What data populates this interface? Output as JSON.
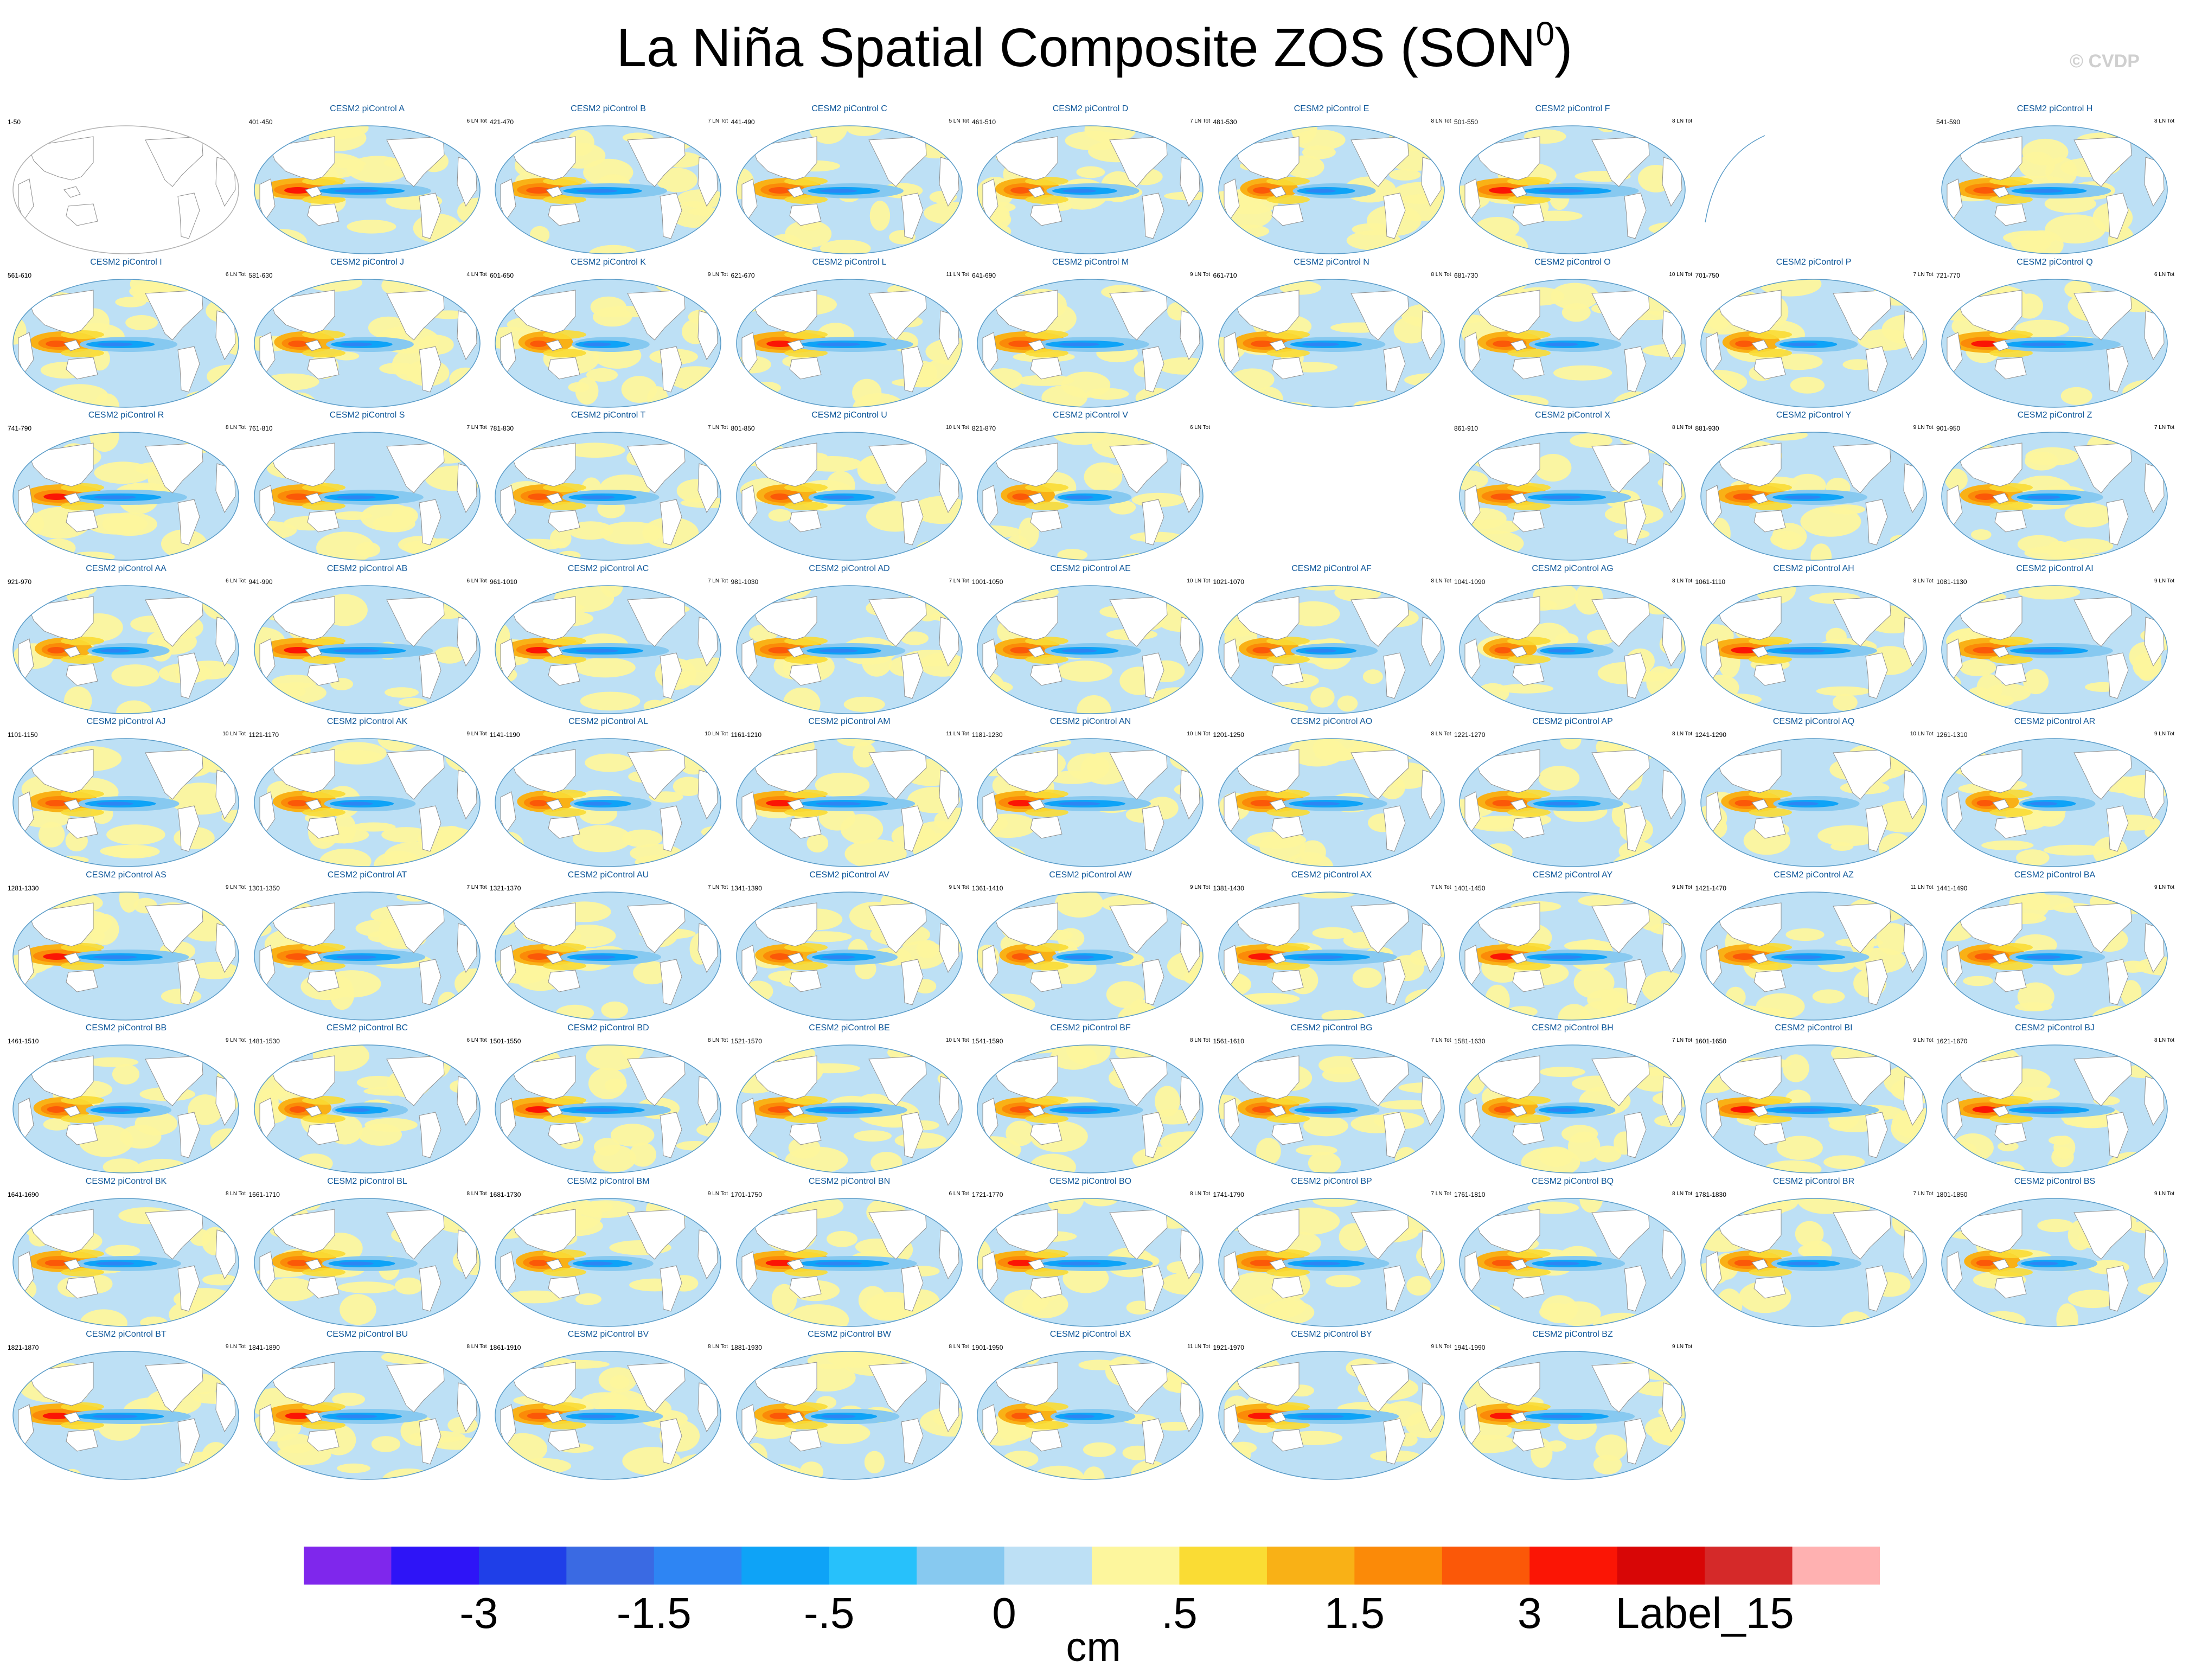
{
  "title": "La Niña Spatial Composite ZOS (SON",
  "title_sup": "0",
  "title_close": ")",
  "copyright": "© CVDP",
  "units": "cm",
  "colors": {
    "land": "#ffffff",
    "coast": "#8f8f8f",
    "frame": "#5b9cc8",
    "panel_title": "#10589a"
  },
  "chart_data": {
    "type": "heatmap",
    "variable": "ZOS",
    "season": "SON",
    "units": "cm",
    "colorbar": {
      "colors": [
        "#7f27ec",
        "#2e14f7",
        "#1f3fe8",
        "#3a6ae3",
        "#2e85f3",
        "#0ea3f7",
        "#27c1fb",
        "#87c9f0",
        "#bde0f5",
        "#fdf69d",
        "#fadc34",
        "#f9b116",
        "#fb8a08",
        "#fb5808",
        "#fb1505",
        "#d80606",
        "#d52929",
        "#ffb1b1"
      ],
      "labels": [
        "-3",
        "-1.5",
        "-.5",
        "0",
        ".5",
        "1.5",
        "3",
        "Label_15"
      ],
      "label_positions": [
        2,
        4,
        6,
        8,
        10,
        12,
        14,
        16
      ]
    },
    "panels": [
      {
        "years": "1-50",
        "title": "",
        "ln": "",
        "blank": true
      },
      {
        "years": "401-450",
        "title": "CESM2 piControl A",
        "ln": "6 LN Tot"
      },
      {
        "years": "421-470",
        "title": "CESM2 piControl B",
        "ln": "7 LN Tot"
      },
      {
        "years": "441-490",
        "title": "CESM2 piControl C",
        "ln": "5 LN Tot"
      },
      {
        "years": "461-510",
        "title": "CESM2 piControl D",
        "ln": "7 LN Tot"
      },
      {
        "years": "481-530",
        "title": "CESM2 piControl E",
        "ln": "8 LN Tot"
      },
      {
        "years": "501-550",
        "title": "CESM2 piControl F",
        "ln": "8 LN Tot"
      },
      {
        "years": "",
        "title": "",
        "ln": "",
        "arc": true
      },
      {
        "years": "541-590",
        "title": "CESM2 piControl H",
        "ln": "8 LN Tot"
      },
      {
        "years": "561-610",
        "title": "CESM2 piControl I",
        "ln": "6 LN Tot"
      },
      {
        "years": "581-630",
        "title": "CESM2 piControl J",
        "ln": "4 LN Tot"
      },
      {
        "years": "601-650",
        "title": "CESM2 piControl K",
        "ln": "9 LN Tot"
      },
      {
        "years": "621-670",
        "title": "CESM2 piControl L",
        "ln": "11 LN Tot"
      },
      {
        "years": "641-690",
        "title": "CESM2 piControl M",
        "ln": "9 LN Tot"
      },
      {
        "years": "661-710",
        "title": "CESM2 piControl N",
        "ln": "8 LN Tot"
      },
      {
        "years": "681-730",
        "title": "CESM2 piControl O",
        "ln": "10 LN Tot"
      },
      {
        "years": "701-750",
        "title": "CESM2 piControl P",
        "ln": "7 LN Tot"
      },
      {
        "years": "721-770",
        "title": "CESM2 piControl Q",
        "ln": "6 LN Tot"
      },
      {
        "years": "741-790",
        "title": "CESM2 piControl R",
        "ln": "8 LN Tot"
      },
      {
        "years": "761-810",
        "title": "CESM2 piControl S",
        "ln": "7 LN Tot"
      },
      {
        "years": "781-830",
        "title": "CESM2 piControl T",
        "ln": "7 LN Tot"
      },
      {
        "years": "801-850",
        "title": "CESM2 piControl U",
        "ln": "10 LN Tot"
      },
      {
        "years": "821-870",
        "title": "CESM2 piControl V",
        "ln": "6 LN Tot"
      },
      {
        "years": "",
        "title": "",
        "ln": "",
        "empty": true
      },
      {
        "years": "861-910",
        "title": "CESM2 piControl X",
        "ln": "8 LN Tot"
      },
      {
        "years": "881-930",
        "title": "CESM2 piControl Y",
        "ln": "9 LN Tot"
      },
      {
        "years": "901-950",
        "title": "CESM2 piControl Z",
        "ln": "7 LN Tot"
      },
      {
        "years": "921-970",
        "title": "CESM2 piControl AA",
        "ln": "6 LN Tot"
      },
      {
        "years": "941-990",
        "title": "CESM2 piControl AB",
        "ln": "6 LN Tot"
      },
      {
        "years": "961-1010",
        "title": "CESM2 piControl AC",
        "ln": "7 LN Tot"
      },
      {
        "years": "981-1030",
        "title": "CESM2 piControl AD",
        "ln": "7 LN Tot"
      },
      {
        "years": "1001-1050",
        "title": "CESM2 piControl AE",
        "ln": "10 LN Tot"
      },
      {
        "years": "1021-1070",
        "title": "CESM2 piControl AF",
        "ln": "8 LN Tot"
      },
      {
        "years": "1041-1090",
        "title": "CESM2 piControl AG",
        "ln": "8 LN Tot"
      },
      {
        "years": "1061-1110",
        "title": "CESM2 piControl AH",
        "ln": "8 LN Tot"
      },
      {
        "years": "1081-1130",
        "title": "CESM2 piControl AI",
        "ln": "9 LN Tot"
      },
      {
        "years": "1101-1150",
        "title": "CESM2 piControl AJ",
        "ln": "10 LN Tot"
      },
      {
        "years": "1121-1170",
        "title": "CESM2 piControl AK",
        "ln": "9 LN Tot"
      },
      {
        "years": "1141-1190",
        "title": "CESM2 piControl AL",
        "ln": "10 LN Tot"
      },
      {
        "years": "1161-1210",
        "title": "CESM2 piControl AM",
        "ln": "11 LN Tot"
      },
      {
        "years": "1181-1230",
        "title": "CESM2 piControl AN",
        "ln": "10 LN Tot"
      },
      {
        "years": "1201-1250",
        "title": "CESM2 piControl AO",
        "ln": "8 LN Tot"
      },
      {
        "years": "1221-1270",
        "title": "CESM2 piControl AP",
        "ln": "8 LN Tot"
      },
      {
        "years": "1241-1290",
        "title": "CESM2 piControl AQ",
        "ln": "10 LN Tot"
      },
      {
        "years": "1261-1310",
        "title": "CESM2 piControl AR",
        "ln": "9 LN Tot"
      },
      {
        "years": "1281-1330",
        "title": "CESM2 piControl AS",
        "ln": "9 LN Tot"
      },
      {
        "years": "1301-1350",
        "title": "CESM2 piControl AT",
        "ln": "7 LN Tot"
      },
      {
        "years": "1321-1370",
        "title": "CESM2 piControl AU",
        "ln": "7 LN Tot"
      },
      {
        "years": "1341-1390",
        "title": "CESM2 piControl AV",
        "ln": "9 LN Tot"
      },
      {
        "years": "1361-1410",
        "title": "CESM2 piControl AW",
        "ln": "9 LN Tot"
      },
      {
        "years": "1381-1430",
        "title": "CESM2 piControl AX",
        "ln": "7 LN Tot"
      },
      {
        "years": "1401-1450",
        "title": "CESM2 piControl AY",
        "ln": "9 LN Tot"
      },
      {
        "years": "1421-1470",
        "title": "CESM2 piControl AZ",
        "ln": "11 LN Tot"
      },
      {
        "years": "1441-1490",
        "title": "CESM2 piControl BA",
        "ln": "9 LN Tot"
      },
      {
        "years": "1461-1510",
        "title": "CESM2 piControl BB",
        "ln": "9 LN Tot"
      },
      {
        "years": "1481-1530",
        "title": "CESM2 piControl BC",
        "ln": "6 LN Tot"
      },
      {
        "years": "1501-1550",
        "title": "CESM2 piControl BD",
        "ln": "8 LN Tot"
      },
      {
        "years": "1521-1570",
        "title": "CESM2 piControl BE",
        "ln": "10 LN Tot"
      },
      {
        "years": "1541-1590",
        "title": "CESM2 piControl BF",
        "ln": "8 LN Tot"
      },
      {
        "years": "1561-1610",
        "title": "CESM2 piControl BG",
        "ln": "7 LN Tot"
      },
      {
        "years": "1581-1630",
        "title": "CESM2 piControl BH",
        "ln": "7 LN Tot"
      },
      {
        "years": "1601-1650",
        "title": "CESM2 piControl BI",
        "ln": "9 LN Tot"
      },
      {
        "years": "1621-1670",
        "title": "CESM2 piControl BJ",
        "ln": "8 LN Tot"
      },
      {
        "years": "1641-1690",
        "title": "CESM2 piControl BK",
        "ln": "8 LN Tot"
      },
      {
        "years": "1661-1710",
        "title": "CESM2 piControl BL",
        "ln": "8 LN Tot"
      },
      {
        "years": "1681-1730",
        "title": "CESM2 piControl BM",
        "ln": "9 LN Tot"
      },
      {
        "years": "1701-1750",
        "title": "CESM2 piControl BN",
        "ln": "6 LN Tot"
      },
      {
        "years": "1721-1770",
        "title": "CESM2 piControl BO",
        "ln": "8 LN Tot"
      },
      {
        "years": "1741-1790",
        "title": "CESM2 piControl BP",
        "ln": "7 LN Tot"
      },
      {
        "years": "1761-1810",
        "title": "CESM2 piControl BQ",
        "ln": "8 LN Tot"
      },
      {
        "years": "1781-1830",
        "title": "CESM2 piControl BR",
        "ln": "7 LN Tot"
      },
      {
        "years": "1801-1850",
        "title": "CESM2 piControl BS",
        "ln": "9 LN Tot"
      },
      {
        "years": "1821-1870",
        "title": "CESM2 piControl BT",
        "ln": "9 LN Tot"
      },
      {
        "years": "1841-1890",
        "title": "CESM2 piControl BU",
        "ln": "8 LN Tot"
      },
      {
        "years": "1861-1910",
        "title": "CESM2 piControl BV",
        "ln": "8 LN Tot"
      },
      {
        "years": "1881-1930",
        "title": "CESM2 piControl BW",
        "ln": "8 LN Tot"
      },
      {
        "years": "1901-1950",
        "title": "CESM2 piControl BX",
        "ln": "11 LN Tot"
      },
      {
        "years": "1921-1970",
        "title": "CESM2 piControl BY",
        "ln": "9 LN Tot"
      },
      {
        "years": "1941-1990",
        "title": "CESM2 piControl BZ",
        "ln": "9 LN Tot"
      }
    ]
  }
}
